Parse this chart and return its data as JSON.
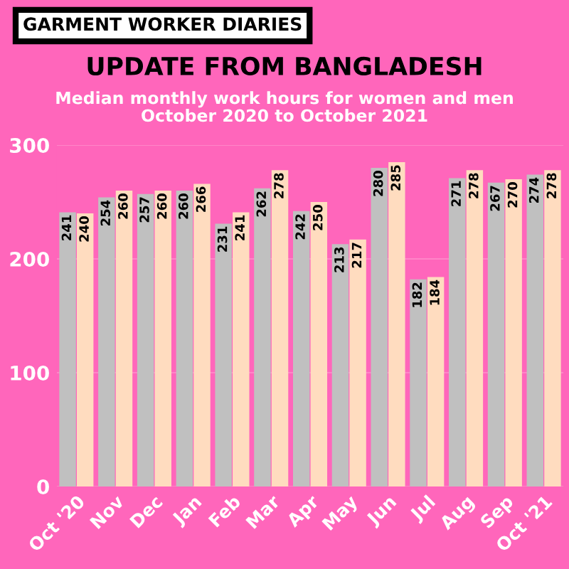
{
  "chart_data": {
    "type": "bar",
    "title": "UPDATE FROM BANGLADESH",
    "subtitle": "Median monthly work hours for women and men\nOctober 2020 to October 2021",
    "annotations": [
      "GARMENT WORKER DIARIES"
    ],
    "categories": [
      "Oct '20",
      "Nov",
      "Dec",
      "Jan",
      "Feb",
      "Mar",
      "Apr",
      "May",
      "Jun",
      "Jul",
      "Aug",
      "Sep",
      "Oct '21"
    ],
    "series": [
      {
        "color": "#c0c0c0",
        "values": [
          241,
          254,
          257,
          260,
          231,
          262,
          242,
          213,
          280,
          182,
          271,
          267,
          274
        ]
      },
      {
        "color": "#ffdcbf",
        "values": [
          240,
          260,
          260,
          266,
          241,
          278,
          250,
          217,
          285,
          184,
          278,
          270,
          278
        ]
      }
    ],
    "ylim": [
      0,
      300
    ],
    "yticks": [
      0,
      100,
      200,
      300
    ],
    "grid": "y",
    "data_labels": true,
    "legend": false
  }
}
